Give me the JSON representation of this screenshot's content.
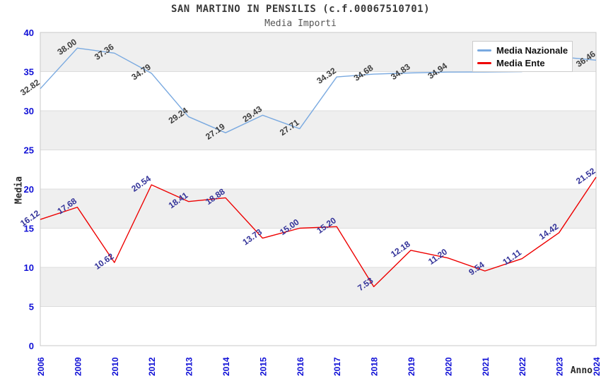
{
  "chart_data": {
    "type": "line",
    "title": "SAN MARTINO IN PENSILIS (c.f.00067510701)",
    "subtitle": "Media Importi",
    "xlabel": "Anno",
    "ylabel": "Media",
    "ylim": [
      0,
      40
    ],
    "ytick_step": 5,
    "y_ticks": [
      "0",
      "5",
      "10",
      "15",
      "20",
      "25",
      "30",
      "35",
      "40"
    ],
    "categories": [
      "2006",
      "2009",
      "2010",
      "2012",
      "2013",
      "2014",
      "2015",
      "2016",
      "2017",
      "2018",
      "2019",
      "2020",
      "2021",
      "2022",
      "2023",
      "2024"
    ],
    "grid": "horizontal bands alternating gray/white every 5 units",
    "legend_position": "top-right",
    "series": [
      {
        "name": "Media Nazionale",
        "color": "#79a9e0",
        "label_color": "#3d3d3d",
        "values": [
          32.82,
          38.0,
          37.36,
          34.79,
          29.24,
          27.19,
          29.43,
          27.71,
          34.32,
          34.68,
          34.83,
          34.94,
          34.95,
          35.0,
          36.9,
          36.46
        ],
        "value_labels": [
          "32.82",
          "38.00",
          "37.36",
          "34.79",
          "29.24",
          "27.19",
          "29.43",
          "27.71",
          "34.32",
          "34.68",
          "34.83",
          "34.94",
          "",
          "",
          "",
          "36.46"
        ]
      },
      {
        "name": "Media Ente",
        "color": "#ee0000",
        "label_color": "#333399",
        "values": [
          16.12,
          17.68,
          10.62,
          20.54,
          18.41,
          18.88,
          13.73,
          15.0,
          15.2,
          7.53,
          12.18,
          11.2,
          9.54,
          11.11,
          14.42,
          21.52
        ],
        "value_labels": [
          "16.12",
          "17.68",
          "10.62",
          "20.54",
          "18.41",
          "18.88",
          "13.73",
          "15.00",
          "15.20",
          "7.53",
          "12.18",
          "11.20",
          "9.54",
          "11.11",
          "14.42",
          "21.52"
        ]
      }
    ],
    "colors": {
      "axis_tick_text": "#0f0fd6",
      "band_fill": "#efefef",
      "gridline": "#dcdcdc",
      "plot_border": "#c8c8c8",
      "background": "#ffffff"
    }
  }
}
